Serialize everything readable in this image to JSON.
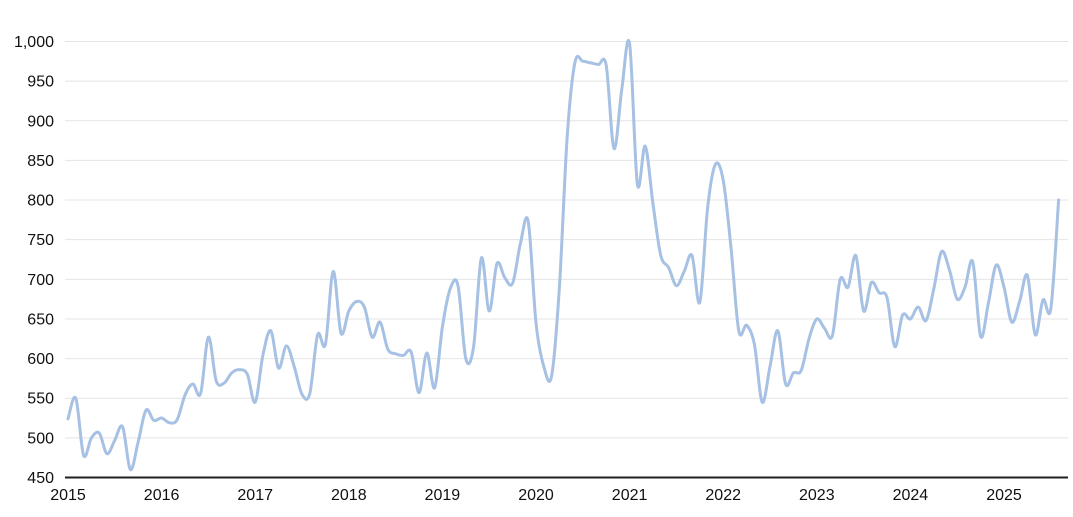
{
  "chart_data": {
    "type": "line",
    "title": "",
    "x_tick_labels": [
      "2015",
      "2016",
      "2017",
      "2018",
      "2019",
      "2020",
      "2021",
      "2022",
      "2023",
      "2024",
      "2025"
    ],
    "y_tick_labels": [
      "450",
      "500",
      "550",
      "600",
      "650",
      "700",
      "750",
      "800",
      "850",
      "900",
      "950",
      "1,000"
    ],
    "ylim": [
      450,
      1000
    ],
    "y_step": 50,
    "grid": "horizontal",
    "legend": false,
    "frequency": "monthly",
    "x_start": "2015-01",
    "x_end": "2025-08",
    "colors": {
      "line": "#a6c1e3",
      "grid": "#e4e4e4",
      "axis": "#1f1f1f",
      "label": "#111111",
      "background": "#ffffff"
    },
    "series": [
      {
        "name": "",
        "color": "#a6c1e3",
        "values": [
          524,
          550,
          478,
          500,
          506,
          480,
          497,
          514,
          460,
          495,
          535,
          522,
          525,
          519,
          523,
          554,
          568,
          556,
          627,
          572,
          569,
          582,
          586,
          580,
          545,
          605,
          635,
          588,
          616,
          590,
          555,
          556,
          630,
          618,
          710,
          632,
          660,
          672,
          665,
          627,
          646,
          612,
          606,
          604,
          608,
          557,
          607,
          563,
          640,
          688,
          692,
          600,
          615,
          727,
          660,
          720,
          702,
          695,
          745,
          773,
          645,
          590,
          578,
          690,
          880,
          974,
          975,
          973,
          971,
          970,
          865,
          940,
          997,
          820,
          868,
          795,
          730,
          715,
          692,
          710,
          730,
          671,
          790,
          845,
          825,
          740,
          635,
          642,
          618,
          545,
          590,
          635,
          568,
          582,
          585,
          625,
          650,
          638,
          629,
          700,
          690,
          730,
          660,
          696,
          683,
          677,
          615,
          655,
          650,
          665,
          648,
          688,
          735,
          712,
          675,
          690,
          722,
          628,
          670,
          718,
          690,
          646,
          672,
          705,
          630,
          674,
          663,
          800
        ]
      }
    ]
  }
}
